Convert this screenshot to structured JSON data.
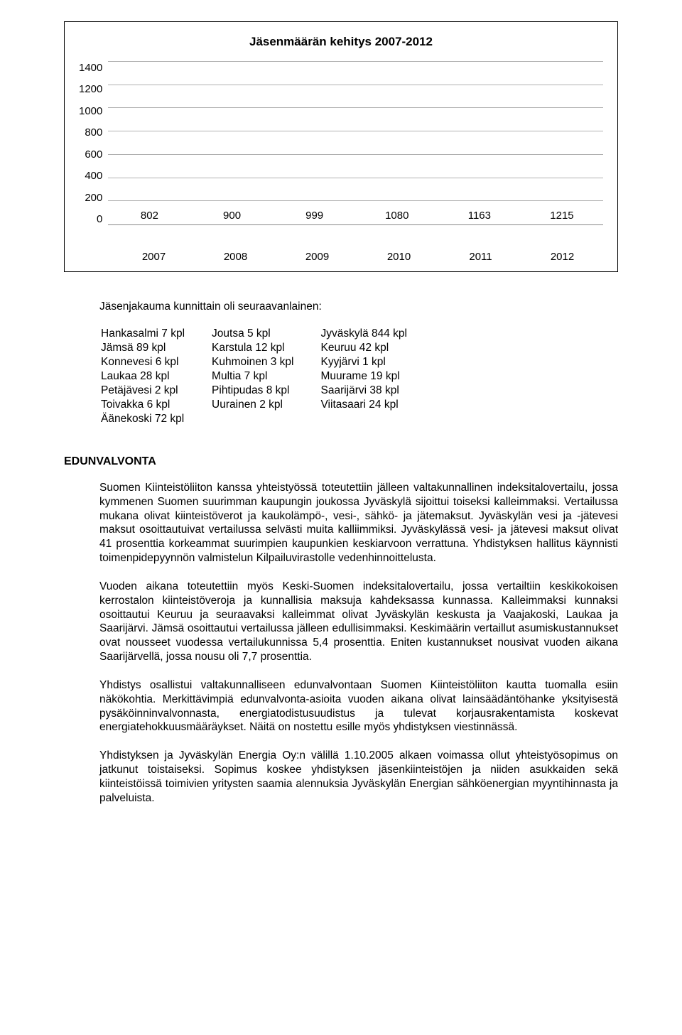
{
  "chart": {
    "type": "bar",
    "title": "Jäsenmäärän kehitys 2007-2012",
    "title_fontsize": 17,
    "categories": [
      "2007",
      "2008",
      "2009",
      "2010",
      "2011",
      "2012"
    ],
    "values": [
      802,
      900,
      999,
      1080,
      1163,
      1215
    ],
    "bar_color": "#000000",
    "background_color": "#ffffff",
    "grid_color": "#b0b0b0",
    "ylim": [
      0,
      1400
    ],
    "ytick_step": 200,
    "label_fontsize": 15,
    "bar_width": 0.7
  },
  "intro": "Jäsenjakauma kunnittain oli seuraavanlainen:",
  "distribution": {
    "rows": [
      [
        "Hankasalmi 7 kpl",
        "Joutsa 5 kpl",
        "Jyväskylä 844 kpl"
      ],
      [
        "Jämsä 89 kpl",
        "Karstula 12 kpl",
        "Keuruu 42 kpl"
      ],
      [
        "Konnevesi 6 kpl",
        "Kuhmoinen 3 kpl",
        "Kyyjärvi 1 kpl"
      ],
      [
        "Laukaa 28 kpl",
        "Multia 7 kpl",
        "Muurame 19 kpl"
      ],
      [
        "Petäjävesi 2 kpl",
        "Pihtipudas 8 kpl",
        "Saarijärvi 38 kpl"
      ],
      [
        "Toivakka 6 kpl",
        "Uurainen 2 kpl",
        "Viitasaari 24 kpl"
      ],
      [
        "Äänekoski 72 kpl",
        "",
        ""
      ]
    ]
  },
  "section_heading": "EDUNVALVONTA",
  "paragraphs": [
    "Suomen Kiinteistöliiton kanssa yhteistyössä toteutettiin jälleen valtakunnallinen indeksitalovertailu, jossa kymmenen Suomen suurimman kaupungin joukossa Jyväskylä sijoittui toiseksi kalleimmaksi. Vertailussa mukana olivat kiinteistöverot ja kaukolämpö-, vesi-, sähkö- ja jätemaksut. Jyväskylän vesi ja -jätevesi maksut osoittautuivat vertailussa selvästi muita kalliimmiksi. Jyväskylässä vesi- ja jätevesi maksut olivat 41 prosenttia korkeammat suurimpien kaupunkien keskiarvoon verrattuna. Yhdistyksen hallitus käynnisti toimenpidepyynnön valmistelun Kilpailuvirastolle vedenhinnoittelusta.",
    "Vuoden aikana toteutettiin myös Keski-Suomen indeksitalovertailu, jossa vertailtiin keskikokoisen kerrostalon kiinteistöveroja ja kunnallisia maksuja kahdeksassa kunnassa. Kalleimmaksi kunnaksi osoittautui Keuruu ja seuraavaksi kalleimmat olivat Jyväskylän keskusta ja Vaajakoski, Laukaa ja Saarijärvi. Jämsä osoittautui vertailussa jälleen edullisimmaksi. Keskimäärin vertaillut asumiskustannukset ovat nousseet vuodessa vertailukunnissa 5,4 prosenttia. Eniten kustannukset nousivat vuoden aikana Saarijärvellä, jossa nousu oli 7,7 prosenttia.",
    "Yhdistys osallistui valtakunnalliseen edunvalvontaan Suomen Kiinteistöliiton kautta tuomalla esiin näkökohtia. Merkittävimpiä edunvalvonta-asioita vuoden aikana olivat lainsäädäntöhanke yksityisestä pysäköinninvalvonnasta, energiatodistusuudistus ja tulevat korjausrakentamista koskevat energiatehokkuusmääräykset. Näitä on nostettu esille myös yhdistyksen viestinnässä.",
    "Yhdistyksen ja Jyväskylän Energia Oy:n välillä 1.10.2005 alkaen voimassa ollut yhteistyösopimus on jatkunut toistaiseksi. Sopimus koskee yhdistyksen jäsenkiinteistöjen ja niiden asukkaiden sekä kiinteistöissä toimivien yritysten saamia alennuksia Jyväskylän Energian sähköenergian myyntihinnasta ja palveluista."
  ]
}
